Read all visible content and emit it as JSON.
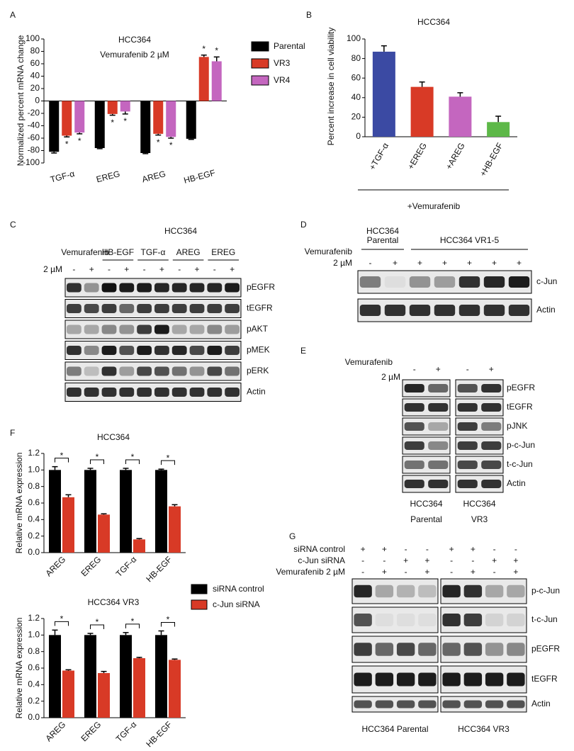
{
  "panel_labels": [
    "A",
    "B",
    "C",
    "D",
    "E",
    "F",
    "G"
  ],
  "chart_data": [
    {
      "type": "bar",
      "title": "HCC364",
      "subtitle": "Vemurafenib 2 µM",
      "ylabel": "Normalized percent mRNA change",
      "categories": [
        "TGF-α",
        "EREG",
        "AREG",
        "HB-EGF"
      ],
      "series": [
        {
          "name": "Parental",
          "color": "#000000",
          "values": [
            -82,
            -76,
            -84,
            -61
          ],
          "errors": [
            2,
            1,
            1,
            1
          ]
        },
        {
          "name": "VR3",
          "color": "#d83a26",
          "values": [
            -56,
            -21,
            -53,
            71
          ],
          "errors": [
            2,
            2,
            2,
            3
          ],
          "significance": [
            "*",
            "*",
            "*",
            "*"
          ]
        },
        {
          "name": "VR4",
          "color": "#c466bf",
          "values": [
            -51,
            -17,
            -58,
            64
          ],
          "errors": [
            2,
            4,
            2,
            7
          ],
          "significance": [
            "*",
            "*",
            "*",
            "*"
          ]
        }
      ],
      "ylim": [
        -100,
        100
      ],
      "yticks": [
        -100,
        -80,
        -60,
        -40,
        -20,
        0,
        20,
        40,
        60,
        80,
        100
      ],
      "legend": "right"
    },
    {
      "type": "bar",
      "title": "HCC364",
      "ylabel": "Percent increase in cell viability",
      "xlabel": "+Vemurafenib",
      "categories": [
        "+TGF-α",
        "+EREG",
        "+AREG",
        "+HB-EGF"
      ],
      "values": [
        87,
        51,
        41,
        15
      ],
      "errors": [
        6,
        5,
        4,
        6
      ],
      "colors": [
        "#3b4aa3",
        "#d83a26",
        "#c466bf",
        "#5db848"
      ],
      "ylim": [
        0,
        100
      ],
      "yticks": [
        0,
        20,
        40,
        60,
        80,
        100
      ]
    },
    {
      "type": "bar",
      "series": [
        {
          "name": "siRNA control",
          "color": "#000000"
        },
        {
          "name": "c-Jun siRNA",
          "color": "#d83a26"
        }
      ],
      "subplots": [
        {
          "title": "HCC364",
          "ylabel": "Relative mRNA expression",
          "categories": [
            "AREG",
            "EREG",
            "TGF-α",
            "HB-EGF"
          ],
          "values": [
            [
              1.0,
              1.0,
              1.0,
              1.0
            ],
            [
              0.67,
              0.46,
              0.16,
              0.56
            ]
          ],
          "errors": [
            [
              0.04,
              0.02,
              0.02,
              0.01
            ],
            [
              0.03,
              0.01,
              0.01,
              0.02
            ]
          ],
          "significance": [
            "*",
            "*",
            "*",
            "*"
          ],
          "ylim": [
            0,
            1.2
          ],
          "yticks": [
            {
              "value": 0,
              "label": "0.0"
            },
            0.2,
            0.4,
            0.6,
            0.8,
            {
              "value": 1,
              "label": "1.0"
            },
            1.2
          ]
        },
        {
          "title": "HCC364 VR3",
          "ylabel": "Relative mRNA expression",
          "categories": [
            "AREG",
            "EREG",
            "TGF-α",
            "HB-EGF"
          ],
          "values": [
            [
              1.0,
              1.0,
              1.0,
              1.0
            ],
            [
              0.57,
              0.54,
              0.72,
              0.7
            ]
          ],
          "errors": [
            [
              0.06,
              0.02,
              0.03,
              0.05
            ],
            [
              0.01,
              0.02,
              0.01,
              0.01
            ]
          ],
          "significance": [
            "*",
            "*",
            "*",
            "*"
          ],
          "ylim": [
            0,
            1.2
          ],
          "yticks": [
            {
              "value": 0,
              "label": "0.0"
            },
            0.2,
            0.4,
            0.6,
            0.8,
            {
              "value": 1,
              "label": "1.0"
            },
            1.2
          ]
        }
      ]
    }
  ],
  "blots": [
    {
      "title": "HCC364",
      "treatment": "Vemurafenib",
      "dose": "2 µM",
      "groups": [
        "HB-EGF",
        "TGF-α",
        "AREG",
        "EREG"
      ],
      "lanes": [
        "-",
        "+",
        "-",
        "+",
        "-",
        "+",
        "-",
        "+",
        "-",
        "+"
      ],
      "rows": [
        "pEGFR",
        "tEGFR",
        "pAKT",
        "pMEK",
        "pERK",
        "Actin"
      ]
    },
    {
      "treatment": "Vemurafenib",
      "dose": "2 µM",
      "groups": [
        [
          "HCC364",
          "Parental"
        ],
        [
          "HCC364 VR1-5"
        ]
      ],
      "lanes": [
        "-",
        "+",
        "+",
        "+",
        "+",
        "+",
        "+"
      ],
      "rows": [
        "c-Jun",
        "Actin"
      ]
    },
    {
      "treatment": "Vemurafenib",
      "dose": "2 µM",
      "lanes": [
        "-",
        "+",
        "-",
        "+"
      ],
      "rows": [
        "pEGFR",
        "tEGFR",
        "pJNK",
        "p-c-Jun",
        "t-c-Jun",
        "Actin"
      ],
      "captions": [
        [
          "HCC364",
          "Parental"
        ],
        [
          "HCC364",
          "VR3"
        ]
      ]
    },
    {
      "conditions": [
        {
          "name": "siRNA control",
          "lanes": [
            "+",
            "+",
            "-",
            "-",
            "+",
            "+",
            "-",
            "-"
          ]
        },
        {
          "name": "c-Jun siRNA",
          "lanes": [
            "-",
            "-",
            "+",
            "+",
            "-",
            "-",
            "+",
            "+"
          ]
        },
        {
          "name": "Vemurafenib 2 µM",
          "lanes": [
            "-",
            "+",
            "-",
            "+",
            "-",
            "+",
            "-",
            "+"
          ]
        }
      ],
      "rows": [
        "p-c-Jun",
        "t-c-Jun",
        "pEGFR",
        "tEGFR",
        "Actin"
      ],
      "captions": [
        "HCC364 Parental",
        "HCC364 VR3"
      ]
    }
  ]
}
